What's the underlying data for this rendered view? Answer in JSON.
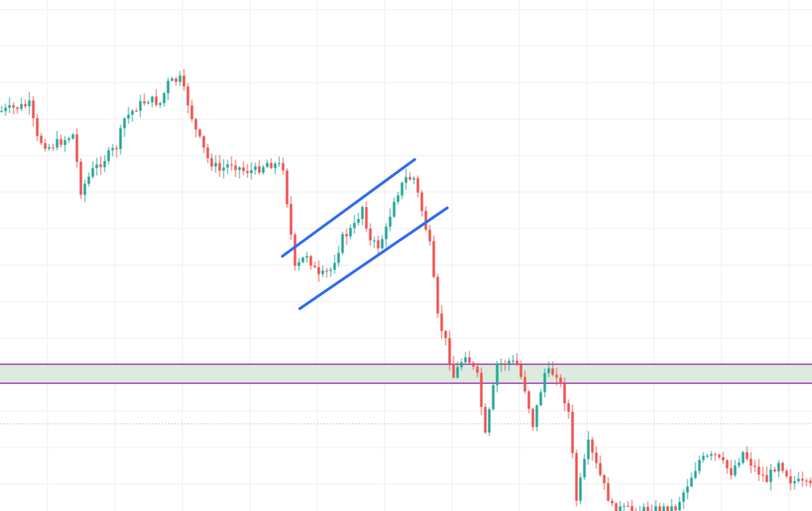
{
  "chart_data": {
    "type": "candlestick",
    "grid": true,
    "ylim": [
      0,
      644
    ],
    "xlim": [
      0,
      205
    ],
    "colors": {
      "up": "#26a69a",
      "down": "#ef5350",
      "grid": "#eeeeee",
      "channel": "#2f6bf0",
      "zone_fill": "#d5e8d8",
      "zone_border": "#9c27b0",
      "dotted_level": "#ef9a9a"
    },
    "anchors": [
      [
        0,
        140
      ],
      [
        7,
        132
      ],
      [
        9,
        175
      ],
      [
        12,
        185
      ],
      [
        15,
        178
      ],
      [
        18,
        170
      ],
      [
        20,
        240
      ],
      [
        23,
        215
      ],
      [
        26,
        200
      ],
      [
        29,
        185
      ],
      [
        31,
        150
      ],
      [
        34,
        135
      ],
      [
        37,
        125
      ],
      [
        40,
        130
      ],
      [
        42,
        105
      ],
      [
        45,
        100
      ],
      [
        47,
        130
      ],
      [
        49,
        165
      ],
      [
        52,
        200
      ],
      [
        55,
        215
      ],
      [
        58,
        205
      ],
      [
        61,
        215
      ],
      [
        64,
        215
      ],
      [
        67,
        205
      ],
      [
        71,
        210
      ],
      [
        74,
        340
      ],
      [
        77,
        320
      ],
      [
        80,
        350
      ],
      [
        83,
        340
      ],
      [
        86,
        300
      ],
      [
        89,
        285
      ],
      [
        91,
        260
      ],
      [
        93,
        305
      ],
      [
        95,
        310
      ],
      [
        97,
        290
      ],
      [
        99,
        250
      ],
      [
        102,
        225
      ],
      [
        104,
        225
      ],
      [
        106,
        265
      ],
      [
        108,
        310
      ],
      [
        110,
        400
      ],
      [
        112,
        430
      ],
      [
        114,
        475
      ],
      [
        117,
        445
      ],
      [
        120,
        475
      ],
      [
        122,
        550
      ],
      [
        125,
        460
      ],
      [
        128,
        455
      ],
      [
        130,
        460
      ],
      [
        132,
        490
      ],
      [
        134,
        535
      ],
      [
        137,
        470
      ],
      [
        140,
        470
      ],
      [
        143,
        520
      ],
      [
        145,
        630
      ],
      [
        148,
        560
      ],
      [
        151,
        600
      ],
      [
        154,
        640
      ],
      [
        160,
        644
      ],
      [
        170,
        640
      ],
      [
        176,
        580
      ],
      [
        180,
        575
      ],
      [
        184,
        595
      ],
      [
        187,
        570
      ],
      [
        190,
        590
      ],
      [
        193,
        605
      ],
      [
        196,
        580
      ],
      [
        199,
        605
      ],
      [
        202,
        610
      ],
      [
        205,
        615
      ]
    ],
    "annotations": {
      "channel_upper": [
        [
          356,
          323
        ],
        [
          523,
          201
        ]
      ],
      "channel_lower": [
        [
          378,
          389
        ],
        [
          564,
          262
        ]
      ],
      "zone": {
        "y_top": 459,
        "y_bottom": 483
      },
      "dotted_level": {
        "y": 534
      }
    }
  }
}
